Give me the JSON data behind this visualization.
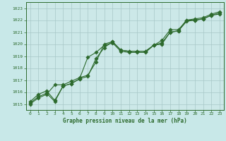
{
  "xlabel": "Graphe pression niveau de la mer (hPa)",
  "bg_color": "#c8e8e8",
  "plot_bg_color": "#cce8e8",
  "grid_color": "#a8c8c8",
  "line_color": "#2d6a2d",
  "marker_color": "#2d6a2d",
  "xlim": [
    -0.5,
    23.5
  ],
  "ylim": [
    1014.5,
    1023.5
  ],
  "yticks": [
    1015,
    1016,
    1017,
    1018,
    1019,
    1020,
    1021,
    1022,
    1023
  ],
  "xticks": [
    0,
    1,
    2,
    3,
    4,
    5,
    6,
    7,
    8,
    9,
    10,
    11,
    12,
    13,
    14,
    15,
    16,
    17,
    18,
    19,
    20,
    21,
    22,
    23
  ],
  "series1_x": [
    0,
    1,
    2,
    3,
    4,
    5,
    6,
    7,
    8,
    9,
    10,
    11,
    12,
    13,
    14,
    15,
    16,
    17,
    18,
    19,
    20,
    21,
    22,
    23
  ],
  "series1_y": [
    1015.2,
    1015.8,
    1016.1,
    1015.3,
    1016.5,
    1016.7,
    1017.1,
    1017.3,
    1018.8,
    1019.7,
    1020.2,
    1019.5,
    1019.4,
    1019.4,
    1019.4,
    1019.9,
    1020.0,
    1021.0,
    1021.1,
    1021.9,
    1022.0,
    1022.1,
    1022.4,
    1022.6
  ],
  "series2_x": [
    0,
    1,
    2,
    3,
    4,
    5,
    6,
    7,
    8,
    9,
    10,
    11,
    12,
    13,
    14,
    15,
    16,
    17,
    18,
    19,
    20,
    21,
    22,
    23
  ],
  "series2_y": [
    1015.1,
    1015.6,
    1015.9,
    1015.2,
    1016.5,
    1016.7,
    1017.1,
    1018.9,
    1019.3,
    1019.9,
    1020.1,
    1019.4,
    1019.3,
    1019.3,
    1019.3,
    1019.9,
    1020.3,
    1021.2,
    1021.2,
    1022.0,
    1022.1,
    1022.2,
    1022.5,
    1022.7
  ],
  "series3_x": [
    0,
    1,
    2,
    3,
    4,
    5,
    6,
    7,
    8,
    9,
    10,
    11,
    12,
    13,
    14,
    15,
    16,
    17,
    18,
    19,
    20,
    21,
    22,
    23
  ],
  "series3_y": [
    1015.0,
    1015.5,
    1015.8,
    1016.6,
    1016.6,
    1016.9,
    1017.2,
    1017.4,
    1018.5,
    1020.0,
    1020.2,
    1019.5,
    1019.4,
    1019.4,
    1019.4,
    1019.9,
    1020.1,
    1021.0,
    1021.1,
    1022.0,
    1022.0,
    1022.1,
    1022.4,
    1022.5
  ]
}
